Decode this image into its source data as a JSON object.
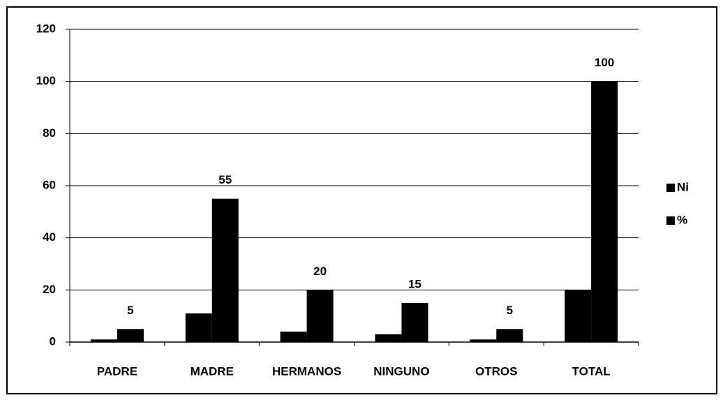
{
  "chart_data": {
    "type": "bar",
    "categories": [
      "PADRE",
      "MADRE",
      "HERMANOS",
      "NINGUNO",
      "OTROS",
      "TOTAL"
    ],
    "series": [
      {
        "name": "Ni",
        "color": "#000000",
        "values": [
          1,
          11,
          4,
          3,
          1,
          20
        ],
        "show_labels": false
      },
      {
        "name": "%",
        "color": "#000000",
        "values": [
          5,
          55,
          20,
          15,
          5,
          100
        ],
        "show_labels": true
      }
    ],
    "ylim": [
      0,
      120
    ],
    "yticks": [
      0,
      20,
      40,
      60,
      80,
      100,
      120
    ],
    "grid": true,
    "legend": "right"
  }
}
